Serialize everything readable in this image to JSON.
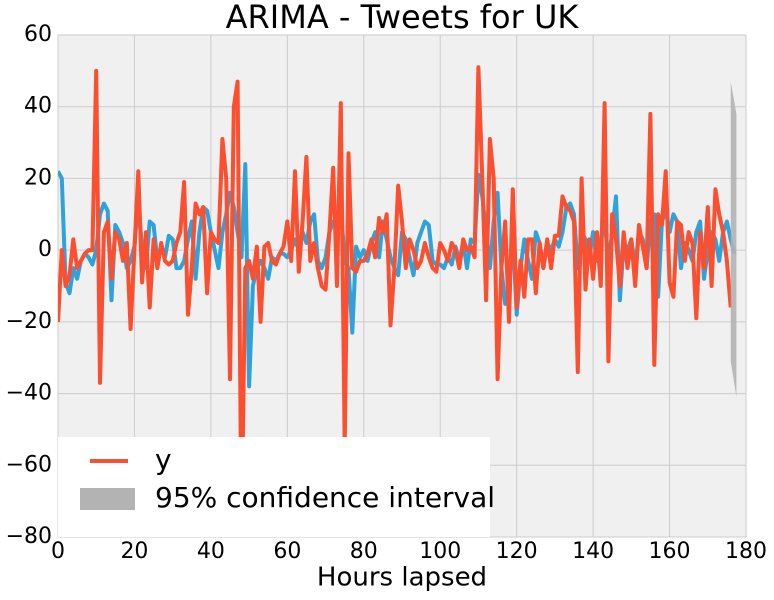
{
  "chart_data": {
    "type": "line",
    "title": "ARIMA - Tweets for UK",
    "x_label": "Hours lapsed",
    "x": [
      0,
      1,
      2,
      3,
      4,
      5,
      6,
      7,
      8,
      9,
      10,
      11,
      12,
      13,
      14,
      15,
      16,
      17,
      18,
      19,
      20,
      21,
      22,
      23,
      24,
      25,
      26,
      27,
      28,
      29,
      30,
      31,
      32,
      33,
      34,
      35,
      36,
      37,
      38,
      39,
      40,
      41,
      42,
      43,
      44,
      45,
      46,
      47,
      48,
      49,
      50,
      51,
      52,
      53,
      54,
      55,
      56,
      57,
      58,
      59,
      60,
      61,
      62,
      63,
      64,
      65,
      66,
      67,
      68,
      69,
      70,
      71,
      72,
      73,
      74,
      75,
      76,
      77,
      78,
      79,
      80,
      81,
      82,
      83,
      84,
      85,
      86,
      87,
      88,
      89,
      90,
      91,
      92,
      93,
      94,
      95,
      96,
      97,
      98,
      99,
      100,
      101,
      102,
      103,
      104,
      105,
      106,
      107,
      108,
      109,
      110,
      111,
      112,
      113,
      114,
      115,
      116,
      117,
      118,
      119,
      120,
      121,
      122,
      123,
      124,
      125,
      126,
      127,
      128,
      129,
      130,
      131,
      132,
      133,
      134,
      135,
      136,
      137,
      138,
      139,
      140,
      141,
      142,
      143,
      144,
      145,
      146,
      147,
      148,
      149,
      150,
      151,
      152,
      153,
      154,
      155,
      156,
      157,
      158,
      159,
      160,
      161,
      162,
      163,
      164,
      165,
      166,
      167,
      168,
      169,
      170,
      171,
      172,
      173,
      174,
      175,
      176,
      177
    ],
    "series": [
      {
        "color": "#30a2da",
        "values": [
          22,
          20,
          -9,
          -12,
          -5,
          -8,
          -3,
          -1,
          -2,
          -4,
          0,
          10,
          13,
          11,
          -14,
          7,
          5,
          2,
          -5,
          -3,
          1,
          14,
          0,
          -5,
          8,
          7,
          -3,
          1,
          -2,
          4,
          3,
          -5,
          -5,
          -3,
          3,
          8,
          -8,
          5,
          12,
          11,
          5,
          0,
          -5,
          5,
          10,
          16,
          12,
          5,
          -2,
          24,
          -38,
          -10,
          -5,
          -3,
          -5,
          -8,
          -2,
          -3,
          -1,
          -1,
          -2,
          0,
          3,
          0,
          5,
          2,
          8,
          10,
          -3,
          -5,
          -2,
          5,
          8,
          6,
          12,
          -3,
          -5,
          -23,
          1,
          -2,
          0,
          -3,
          2,
          5,
          -2,
          8,
          3,
          -2,
          -5,
          -7,
          5,
          3,
          -2,
          -7,
          2,
          5,
          8,
          7,
          -3,
          -4,
          -4,
          -5,
          -2,
          -4,
          1,
          -3,
          2,
          -5,
          3,
          2,
          21,
          15,
          5,
          -5,
          8,
          16,
          -5,
          -15,
          -10,
          5,
          -18,
          -5,
          3,
          -3,
          -8,
          5,
          2,
          -5,
          2,
          0,
          3,
          1,
          5,
          12,
          13,
          10,
          -5,
          5,
          3,
          -2,
          5,
          -3,
          3,
          8,
          -3,
          5,
          15,
          -14,
          2,
          0,
          3,
          -5,
          5,
          3,
          -5,
          8,
          10,
          -13,
          8,
          11,
          5,
          10,
          8,
          -5,
          2,
          0,
          -3,
          5,
          8,
          -8,
          0,
          5,
          3,
          -3,
          5,
          8,
          3,
          -1
        ]
      },
      {
        "name": "y",
        "color": "#fc4f30",
        "values": [
          -20,
          0,
          -10,
          -7,
          3,
          -5,
          -3,
          -1,
          0,
          0,
          50,
          -37,
          5,
          8,
          -8,
          5,
          3,
          -3,
          2,
          -22,
          0,
          22,
          -9,
          5,
          -16,
          3,
          -5,
          2,
          -3,
          -4,
          -3,
          2,
          5,
          19,
          -18,
          -5,
          13,
          10,
          12,
          -12,
          5,
          3,
          2,
          31,
          20,
          -36,
          40,
          47,
          -78,
          -5,
          -3,
          -8,
          1,
          -20,
          1,
          2,
          -3,
          -4,
          -1,
          1,
          8,
          -3,
          22,
          -6,
          8,
          26,
          -3,
          2,
          -5,
          -10,
          -11,
          5,
          23,
          -10,
          41,
          -55,
          27,
          -5,
          -6,
          -3,
          -3,
          -1,
          3,
          -2,
          9,
          5,
          10,
          -21,
          -5,
          18,
          8,
          -5,
          3,
          0,
          -5,
          -3,
          2,
          -2,
          -5,
          -6,
          2,
          0,
          -3,
          2,
          0,
          -5,
          3,
          0,
          1,
          -2,
          51,
          20,
          -14,
          31,
          20,
          -36,
          -5,
          8,
          -20,
          17,
          -16,
          -3,
          -13,
          3,
          3,
          -12,
          2,
          -5,
          3,
          -5,
          4,
          4,
          15,
          12,
          11,
          8,
          -34,
          20,
          -11,
          3,
          -8,
          5,
          -10,
          41,
          -31,
          10,
          3,
          -10,
          5,
          -5,
          3,
          -10,
          7,
          1,
          -5,
          38,
          -32,
          10,
          7,
          22,
          -9,
          -13,
          8,
          7,
          -3,
          5,
          2,
          -19,
          5,
          -5,
          12,
          -10,
          17,
          10,
          5,
          -3,
          -16,
          null
        ]
      }
    ],
    "band": {
      "name": "95% confidence interval",
      "color": "#b3b3b3",
      "x": [
        176,
        177.5
      ],
      "lower": [
        -31,
        -41
      ],
      "upper": [
        47,
        38
      ]
    },
    "xlim": [
      0,
      180
    ],
    "xticks": [
      0,
      20,
      40,
      60,
      80,
      100,
      120,
      140,
      160,
      180
    ],
    "ylim": [
      -80,
      60
    ],
    "yticks": [
      {
        "value": -80,
        "label": "−80"
      },
      {
        "value": -60,
        "label": "−60"
      },
      {
        "value": -40,
        "label": "−40"
      },
      {
        "value": -20,
        "label": "−20"
      },
      0,
      20,
      40,
      60
    ],
    "grid": true,
    "legend": "lower left",
    "background": "#f0f0f0"
  }
}
